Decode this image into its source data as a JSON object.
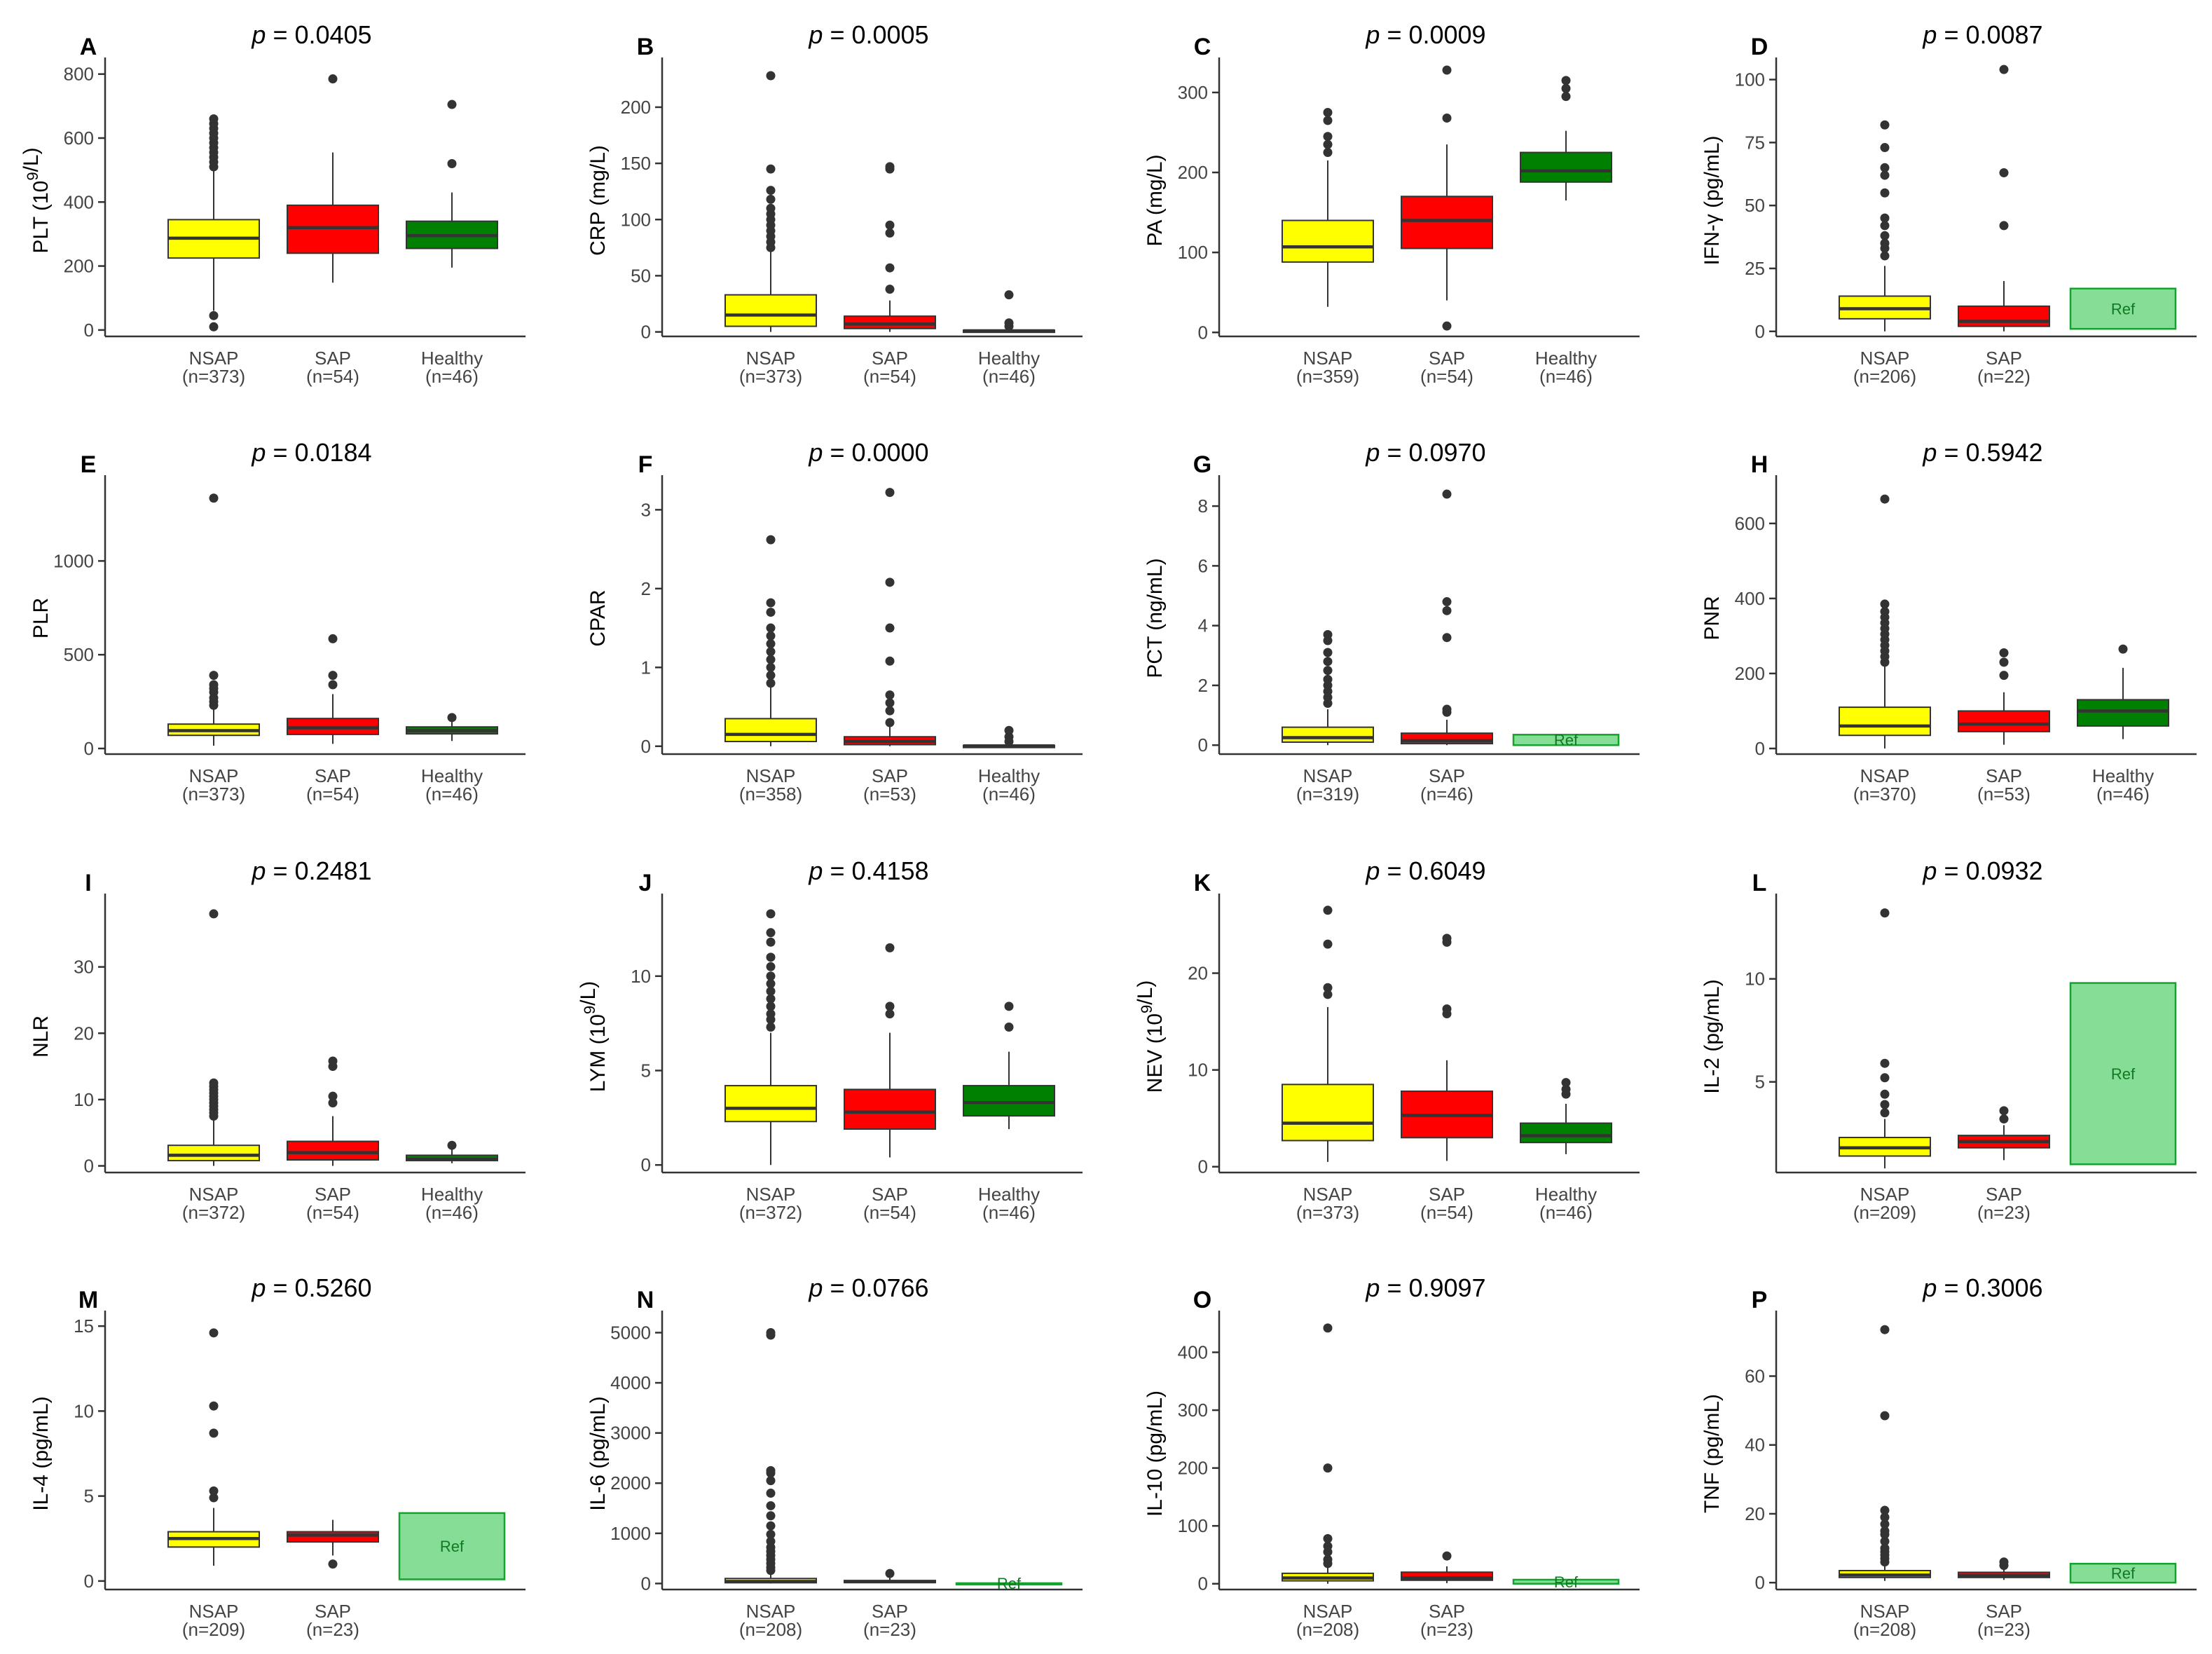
{
  "figure": {
    "colors": {
      "NSAP": "#ffff00",
      "SAP": "#ff0000",
      "Healthy": "#008000",
      "ref_fill": "#86dd96",
      "ref_stroke": "#15a32f",
      "ref_text": "#0f7a22",
      "outline": "#333333",
      "axis": "#333333",
      "tick_text": "#444444"
    },
    "ref_label": "Ref",
    "p_prefix": "p",
    "p_equals": " = "
  },
  "chart_data": [
    {
      "panel": "A",
      "type": "box",
      "ylabel": "PLT (10^9/L)",
      "p_value": "0.0405",
      "ylim": [
        -20,
        830
      ],
      "yticks": [
        0,
        200,
        400,
        600,
        800
      ],
      "groups": [
        {
          "name": "NSAP",
          "n_label": "(n=373)",
          "q1": 225,
          "median": 287,
          "q3": 345,
          "whisker_low": 60,
          "whisker_high": 500,
          "outliers": [
            10,
            45,
            510,
            525,
            540,
            555,
            570,
            585,
            600,
            615,
            630,
            645,
            660
          ]
        },
        {
          "name": "SAP",
          "n_label": "(n=54)",
          "q1": 240,
          "median": 320,
          "q3": 390,
          "whisker_low": 148,
          "whisker_high": 555,
          "outliers": [
            785
          ]
        },
        {
          "name": "Healthy",
          "n_label": "(n=46)",
          "q1": 255,
          "median": 295,
          "q3": 340,
          "whisker_low": 195,
          "whisker_high": 430,
          "outliers": [
            520,
            705
          ]
        }
      ]
    },
    {
      "panel": "B",
      "type": "box",
      "ylabel": "CRP (mg/L)",
      "p_value": "0.0005",
      "ylim": [
        -4,
        238
      ],
      "yticks": [
        0,
        50,
        100,
        150,
        200
      ],
      "groups": [
        {
          "name": "NSAP",
          "n_label": "(n=373)",
          "q1": 5,
          "median": 15,
          "q3": 33,
          "whisker_low": 0,
          "whisker_high": 72,
          "outliers": [
            75,
            80,
            85,
            90,
            95,
            100,
            105,
            110,
            118,
            126,
            145,
            228
          ]
        },
        {
          "name": "SAP",
          "n_label": "(n=54)",
          "q1": 3,
          "median": 7,
          "q3": 14,
          "whisker_low": 0,
          "whisker_high": 28,
          "outliers": [
            38,
            57,
            88,
            95,
            145,
            147
          ]
        },
        {
          "name": "Healthy",
          "n_label": "(n=46)",
          "q1": 0,
          "median": 1,
          "q3": 1.5,
          "whisker_low": 0,
          "whisker_high": 3,
          "outliers": [
            5,
            8,
            33
          ]
        }
      ]
    },
    {
      "panel": "C",
      "type": "box",
      "ylabel": "PA (mg/L)",
      "p_value": "0.0009",
      "ylim": [
        -5,
        335
      ],
      "yticks": [
        0,
        100,
        200,
        300
      ],
      "groups": [
        {
          "name": "NSAP",
          "n_label": "(n=359)",
          "q1": 88,
          "median": 107,
          "q3": 140,
          "whisker_low": 32,
          "whisker_high": 215,
          "outliers": [
            225,
            235,
            245,
            265,
            275
          ]
        },
        {
          "name": "SAP",
          "n_label": "(n=54)",
          "q1": 105,
          "median": 140,
          "q3": 170,
          "whisker_low": 40,
          "whisker_high": 235,
          "outliers": [
            8,
            268,
            328
          ]
        },
        {
          "name": "Healthy",
          "n_label": "(n=46)",
          "q1": 188,
          "median": 202,
          "q3": 225,
          "whisker_low": 165,
          "whisker_high": 252,
          "outliers": [
            295,
            305,
            315
          ]
        }
      ]
    },
    {
      "panel": "D",
      "type": "box",
      "ylabel": "IFN-γ (pg/mL)",
      "p_value": "0.0087",
      "ref_box": [
        1,
        17
      ],
      "ylim": [
        -2,
        106
      ],
      "yticks": [
        0,
        25,
        50,
        75,
        100
      ],
      "groups": [
        {
          "name": "NSAP",
          "n_label": "(n=206)",
          "q1": 5,
          "median": 9,
          "q3": 14,
          "whisker_low": 0,
          "whisker_high": 26,
          "outliers": [
            30,
            33,
            35,
            38,
            42,
            45,
            55,
            62,
            65,
            73,
            82
          ]
        },
        {
          "name": "SAP",
          "n_label": "(n=22)",
          "q1": 2,
          "median": 4,
          "q3": 10,
          "whisker_low": 0,
          "whisker_high": 20,
          "outliers": [
            42,
            63,
            104
          ]
        }
      ]
    },
    {
      "panel": "E",
      "type": "box",
      "ylabel": "PLR",
      "p_value": "0.0184",
      "ylim": [
        -30,
        1420
      ],
      "yticks": [
        0,
        500,
        1000
      ],
      "groups": [
        {
          "name": "NSAP",
          "n_label": "(n=373)",
          "q1": 70,
          "median": 95,
          "q3": 130,
          "whisker_low": 15,
          "whisker_high": 215,
          "outliers": [
            230,
            250,
            270,
            300,
            320,
            340,
            390,
            1335
          ]
        },
        {
          "name": "SAP",
          "n_label": "(n=54)",
          "q1": 75,
          "median": 110,
          "q3": 160,
          "whisker_low": 25,
          "whisker_high": 290,
          "outliers": [
            340,
            390,
            585
          ]
        },
        {
          "name": "Healthy",
          "n_label": "(n=46)",
          "q1": 78,
          "median": 95,
          "q3": 115,
          "whisker_low": 40,
          "whisker_high": 150,
          "outliers": [
            165
          ]
        }
      ]
    },
    {
      "panel": "F",
      "type": "box",
      "ylabel": "CPAR",
      "p_value": "0.0000",
      "ylim": [
        -0.1,
        3.35
      ],
      "yticks": [
        0,
        1,
        2,
        3
      ],
      "groups": [
        {
          "name": "NSAP",
          "n_label": "(n=358)",
          "q1": 0.06,
          "median": 0.15,
          "q3": 0.35,
          "whisker_low": 0,
          "whisker_high": 0.75,
          "outliers": [
            0.8,
            0.9,
            1.0,
            1.1,
            1.2,
            1.3,
            1.4,
            1.5,
            1.7,
            1.82,
            2.62
          ]
        },
        {
          "name": "SAP",
          "n_label": "(n=53)",
          "q1": 0.02,
          "median": 0.06,
          "q3": 0.12,
          "whisker_low": 0,
          "whisker_high": 0.25,
          "outliers": [
            0.3,
            0.45,
            0.55,
            0.65,
            1.08,
            1.5,
            2.08,
            3.22
          ]
        },
        {
          "name": "Healthy",
          "n_label": "(n=46)",
          "q1": 0,
          "median": 0.005,
          "q3": 0.01,
          "whisker_low": 0,
          "whisker_high": 0.02,
          "outliers": [
            0.06,
            0.12,
            0.2
          ]
        }
      ]
    },
    {
      "panel": "G",
      "type": "box",
      "ylabel": "PCT (ng/mL)",
      "p_value": "0.0970",
      "ref_box": [
        0,
        0.35
      ],
      "ylim": [
        -0.3,
        8.8
      ],
      "yticks": [
        0,
        2,
        4,
        6,
        8
      ],
      "groups": [
        {
          "name": "NSAP",
          "n_label": "(n=319)",
          "q1": 0.1,
          "median": 0.25,
          "q3": 0.6,
          "whisker_low": 0,
          "whisker_high": 1.2,
          "outliers": [
            1.4,
            1.6,
            1.8,
            2.0,
            2.2,
            2.5,
            2.8,
            3.1,
            3.5,
            3.7
          ]
        },
        {
          "name": "SAP",
          "n_label": "(n=46)",
          "q1": 0.05,
          "median": 0.15,
          "q3": 0.4,
          "whisker_low": 0,
          "whisker_high": 0.85,
          "outliers": [
            1.1,
            1.2,
            3.6,
            4.5,
            4.8,
            8.4
          ]
        }
      ]
    },
    {
      "panel": "H",
      "type": "box",
      "ylabel": "PNR",
      "p_value": "0.5942",
      "ylim": [
        -15,
        710
      ],
      "yticks": [
        0,
        200,
        400,
        600
      ],
      "groups": [
        {
          "name": "NSAP",
          "n_label": "(n=370)",
          "q1": 35,
          "median": 60,
          "q3": 110,
          "whisker_low": 0,
          "whisker_high": 220,
          "outliers": [
            230,
            245,
            260,
            275,
            290,
            305,
            320,
            335,
            350,
            365,
            385,
            665
          ]
        },
        {
          "name": "SAP",
          "n_label": "(n=53)",
          "q1": 45,
          "median": 65,
          "q3": 100,
          "whisker_low": 10,
          "whisker_high": 150,
          "outliers": [
            195,
            230,
            255
          ]
        },
        {
          "name": "Healthy",
          "n_label": "(n=46)",
          "q1": 60,
          "median": 100,
          "q3": 130,
          "whisker_low": 25,
          "whisker_high": 215,
          "outliers": [
            265
          ]
        }
      ]
    },
    {
      "panel": "I",
      "type": "box",
      "ylabel": "NLR",
      "p_value": "0.2481",
      "ylim": [
        -1,
        40
      ],
      "yticks": [
        0,
        10,
        20,
        30
      ],
      "groups": [
        {
          "name": "NSAP",
          "n_label": "(n=372)",
          "q1": 0.8,
          "median": 1.6,
          "q3": 3.1,
          "whisker_low": 0,
          "whisker_high": 7,
          "outliers": [
            7.5,
            8,
            8.5,
            9,
            9.5,
            10,
            10.5,
            11,
            11.5,
            12,
            12.5,
            38
          ]
        },
        {
          "name": "SAP",
          "n_label": "(n=54)",
          "q1": 0.9,
          "median": 2.0,
          "q3": 3.7,
          "whisker_low": 0,
          "whisker_high": 7.5,
          "outliers": [
            9.5,
            10.5,
            15,
            15.8
          ]
        },
        {
          "name": "Healthy",
          "n_label": "(n=46)",
          "q1": 0.8,
          "median": 1.0,
          "q3": 1.6,
          "whisker_low": 0.4,
          "whisker_high": 2.5,
          "outliers": [
            3.1
          ]
        }
      ]
    },
    {
      "panel": "J",
      "type": "box",
      "ylabel": "LYM (10^9/L)",
      "p_value": "0.4158",
      "ylim": [
        -0.4,
        14
      ],
      "yticks": [
        0,
        5,
        10
      ],
      "groups": [
        {
          "name": "NSAP",
          "n_label": "(n=372)",
          "q1": 2.3,
          "median": 3.0,
          "q3": 4.2,
          "whisker_low": 0,
          "whisker_high": 7.0,
          "outliers": [
            7.3,
            7.7,
            8.0,
            8.4,
            8.8,
            9.2,
            9.6,
            10.0,
            10.5,
            11.0,
            11.8,
            12.3,
            13.3
          ]
        },
        {
          "name": "SAP",
          "n_label": "(n=54)",
          "q1": 1.9,
          "median": 2.8,
          "q3": 4.0,
          "whisker_low": 0.4,
          "whisker_high": 7.0,
          "outliers": [
            8.0,
            8.4,
            11.5
          ]
        },
        {
          "name": "Healthy",
          "n_label": "(n=46)",
          "q1": 2.6,
          "median": 3.3,
          "q3": 4.2,
          "whisker_low": 1.9,
          "whisker_high": 6.0,
          "outliers": [
            7.3,
            8.4
          ]
        }
      ]
    },
    {
      "panel": "K",
      "type": "box",
      "ylabel": "NEV (10^9/L)",
      "p_value": "0.6049",
      "ylim": [
        -0.6,
        27.5
      ],
      "yticks": [
        0,
        10,
        20
      ],
      "groups": [
        {
          "name": "NSAP",
          "n_label": "(n=373)",
          "q1": 2.7,
          "median": 4.5,
          "q3": 8.5,
          "whisker_low": 0.5,
          "whisker_high": 16.5,
          "outliers": [
            17.8,
            18.5,
            23.0,
            26.5
          ]
        },
        {
          "name": "SAP",
          "n_label": "(n=54)",
          "q1": 3.0,
          "median": 5.3,
          "q3": 7.8,
          "whisker_low": 0.6,
          "whisker_high": 11,
          "outliers": [
            15.8,
            16.3,
            23.2,
            23.6
          ]
        },
        {
          "name": "Healthy",
          "n_label": "(n=46)",
          "q1": 2.5,
          "median": 3.2,
          "q3": 4.5,
          "whisker_low": 1.3,
          "whisker_high": 6.5,
          "outliers": [
            7.5,
            8.0,
            8.7
          ]
        }
      ]
    },
    {
      "panel": "L",
      "type": "box",
      "ylabel": "IL-2 (pg/mL)",
      "p_value": "0.0932",
      "ref_box": [
        1,
        9.8
      ],
      "ylim": [
        0.6,
        13.8
      ],
      "yticks": [
        5,
        10
      ],
      "groups": [
        {
          "name": "NSAP",
          "n_label": "(n=209)",
          "q1": 1.4,
          "median": 1.8,
          "q3": 2.3,
          "whisker_low": 0.8,
          "whisker_high": 3.2,
          "outliers": [
            3.5,
            3.9,
            4.4,
            5.2,
            5.9,
            13.2
          ]
        },
        {
          "name": "SAP",
          "n_label": "(n=23)",
          "q1": 1.8,
          "median": 2.1,
          "q3": 2.4,
          "whisker_low": 1.2,
          "whisker_high": 2.9,
          "outliers": [
            3.2,
            3.6
          ]
        }
      ]
    },
    {
      "panel": "M",
      "type": "box",
      "ylabel": "IL-4 (pg/mL)",
      "p_value": "0.5260",
      "ref_box": [
        0.1,
        4
      ],
      "ylim": [
        -0.5,
        15.5
      ],
      "yticks": [
        0,
        5,
        10,
        15
      ],
      "groups": [
        {
          "name": "NSAP",
          "n_label": "(n=209)",
          "q1": 2.0,
          "median": 2.5,
          "q3": 2.9,
          "whisker_low": 0.9,
          "whisker_high": 4.3,
          "outliers": [
            4.9,
            5.3,
            8.7,
            10.3,
            14.6
          ]
        },
        {
          "name": "SAP",
          "n_label": "(n=23)",
          "q1": 2.3,
          "median": 2.7,
          "q3": 2.9,
          "whisker_low": 1.5,
          "whisker_high": 3.6,
          "outliers": [
            1.0
          ]
        }
      ]
    },
    {
      "panel": "N",
      "type": "box",
      "ylabel": "IL-6 (pg/mL)",
      "p_value": "0.0766",
      "ref_box": [
        0,
        7
      ],
      "ylim": [
        -120,
        5300
      ],
      "yticks": [
        0,
        1000,
        2000,
        3000,
        4000,
        5000
      ],
      "groups": [
        {
          "name": "NSAP",
          "n_label": "(n=208)",
          "q1": 15,
          "median": 40,
          "q3": 100,
          "whisker_low": 0,
          "whisker_high": 220,
          "outliers": [
            260,
            320,
            400,
            480,
            560,
            640,
            720,
            840,
            980,
            1150,
            1350,
            1550,
            1800,
            2050,
            2200,
            2250,
            4950,
            5000
          ]
        },
        {
          "name": "SAP",
          "n_label": "(n=23)",
          "q1": 20,
          "median": 35,
          "q3": 60,
          "whisker_low": 5,
          "whisker_high": 110,
          "outliers": [
            200
          ]
        }
      ]
    },
    {
      "panel": "O",
      "type": "box",
      "ylabel": "IL-10 (pg/mL)",
      "p_value": "0.9097",
      "ref_box": [
        0,
        7
      ],
      "ylim": [
        -10,
        460
      ],
      "yticks": [
        0,
        100,
        200,
        300,
        400
      ],
      "groups": [
        {
          "name": "NSAP",
          "n_label": "(n=208)",
          "q1": 5,
          "median": 10,
          "q3": 18,
          "whisker_low": 0,
          "whisker_high": 30,
          "outliers": [
            35,
            42,
            55,
            65,
            78,
            200,
            442
          ]
        },
        {
          "name": "SAP",
          "n_label": "(n=23)",
          "q1": 6,
          "median": 10,
          "q3": 20,
          "whisker_low": 1,
          "whisker_high": 30,
          "outliers": [
            48
          ]
        }
      ]
    },
    {
      "panel": "P",
      "type": "box",
      "ylabel": "TNF (pg/mL)",
      "p_value": "0.3006",
      "ref_box": [
        0,
        5.5
      ],
      "ylim": [
        -2,
        77
      ],
      "yticks": [
        0,
        20,
        40,
        60
      ],
      "groups": [
        {
          "name": "NSAP",
          "n_label": "(n=208)",
          "q1": 1.5,
          "median": 2.2,
          "q3": 3.5,
          "whisker_low": 0.5,
          "whisker_high": 5,
          "outliers": [
            6,
            7,
            8,
            9,
            10,
            12,
            14,
            15,
            17,
            19,
            21,
            48.5,
            73.5
          ]
        },
        {
          "name": "SAP",
          "n_label": "(n=23)",
          "q1": 1.5,
          "median": 2.0,
          "q3": 3.0,
          "whisker_low": 0.8,
          "whisker_high": 4,
          "outliers": [
            5,
            6
          ]
        }
      ]
    }
  ]
}
